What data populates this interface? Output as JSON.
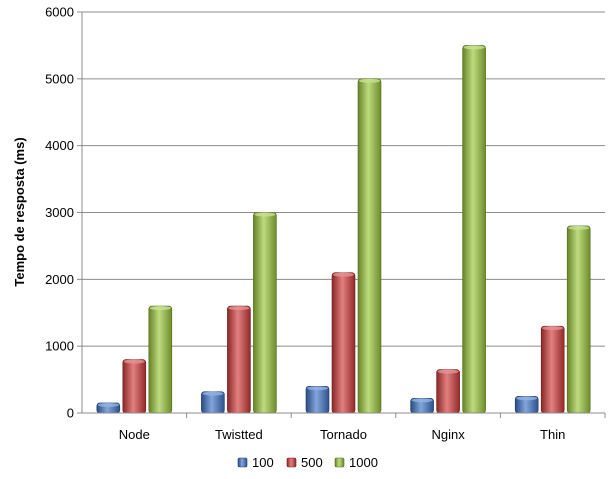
{
  "chart_data": {
    "type": "bar",
    "title": "",
    "xlabel": "",
    "ylabel": "Tempo de resposta (ms)",
    "ylim": [
      0,
      6000
    ],
    "yticks": [
      0,
      1000,
      2000,
      3000,
      4000,
      5000,
      6000
    ],
    "categories": [
      "Node",
      "Twistted",
      "Tornado",
      "Nginx",
      "Thin"
    ],
    "series": [
      {
        "name": "100",
        "values": [
          150,
          320,
          400,
          220,
          250
        ],
        "color": "#3f74c8"
      },
      {
        "name": "500",
        "values": [
          800,
          1600,
          2100,
          650,
          1300
        ],
        "color": "#d23b3b"
      },
      {
        "name": "1000",
        "values": [
          1600,
          3000,
          5000,
          5500,
          2800
        ],
        "color": "#9bc83a"
      }
    ],
    "grid": true,
    "legend_position": "bottom"
  }
}
